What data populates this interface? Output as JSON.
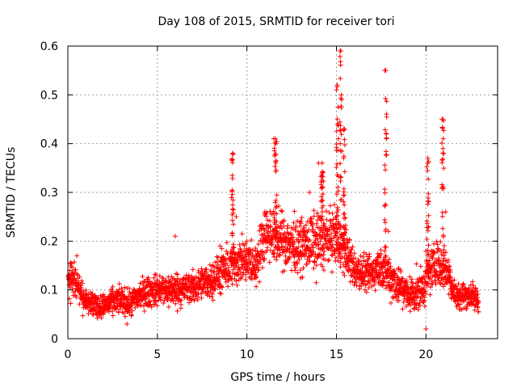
{
  "chart_data": {
    "type": "scatter",
    "title": "Day 108 of 2015, SRMTID for receiver tori",
    "xlabel": "GPS time / hours",
    "ylabel": "SRMTID / TECUs",
    "xlim": [
      0,
      24
    ],
    "ylim": [
      0,
      0.6
    ],
    "x_ticks": [
      0,
      5,
      10,
      15,
      20
    ],
    "x_tick_labels": [
      "0",
      "5",
      "10",
      "15",
      "20"
    ],
    "y_ticks": [
      0,
      0.1,
      0.2,
      0.3,
      0.4,
      0.5,
      0.6
    ],
    "y_tick_labels": [
      "0",
      "0.1",
      "0.2",
      "0.3",
      "0.4",
      "0.5",
      "0.6"
    ],
    "grid": true,
    "marker": "+",
    "color": "#ff0000",
    "sample_series": [
      {
        "x": 0.1,
        "y": 0.14
      },
      {
        "x": 0.3,
        "y": 0.12
      },
      {
        "x": 0.5,
        "y": 0.17
      },
      {
        "x": 0.7,
        "y": 0.09
      },
      {
        "x": 1.0,
        "y": 0.08
      },
      {
        "x": 1.3,
        "y": 0.07
      },
      {
        "x": 1.6,
        "y": 0.05
      },
      {
        "x": 2.0,
        "y": 0.06
      },
      {
        "x": 2.5,
        "y": 0.08
      },
      {
        "x": 3.0,
        "y": 0.07
      },
      {
        "x": 3.3,
        "y": 0.03
      },
      {
        "x": 4.0,
        "y": 0.09
      },
      {
        "x": 4.5,
        "y": 0.11
      },
      {
        "x": 5.0,
        "y": 0.12
      },
      {
        "x": 5.6,
        "y": 0.09
      },
      {
        "x": 6.0,
        "y": 0.21
      },
      {
        "x": 6.5,
        "y": 0.11
      },
      {
        "x": 7.0,
        "y": 0.12
      },
      {
        "x": 7.5,
        "y": 0.1
      },
      {
        "x": 8.0,
        "y": 0.13
      },
      {
        "x": 8.5,
        "y": 0.19
      },
      {
        "x": 9.2,
        "y": 0.38
      },
      {
        "x": 9.4,
        "y": 0.25
      },
      {
        "x": 10.0,
        "y": 0.2
      },
      {
        "x": 10.5,
        "y": 0.13
      },
      {
        "x": 11.0,
        "y": 0.26
      },
      {
        "x": 11.5,
        "y": 0.41
      },
      {
        "x": 12.0,
        "y": 0.2
      },
      {
        "x": 12.5,
        "y": 0.14
      },
      {
        "x": 13.0,
        "y": 0.22
      },
      {
        "x": 13.5,
        "y": 0.3
      },
      {
        "x": 14.0,
        "y": 0.36
      },
      {
        "x": 14.5,
        "y": 0.22
      },
      {
        "x": 15.0,
        "y": 0.51
      },
      {
        "x": 15.2,
        "y": 0.59
      },
      {
        "x": 15.4,
        "y": 0.43
      },
      {
        "x": 15.8,
        "y": 0.16
      },
      {
        "x": 16.5,
        "y": 0.12
      },
      {
        "x": 17.0,
        "y": 0.14
      },
      {
        "x": 17.7,
        "y": 0.55
      },
      {
        "x": 17.9,
        "y": 0.22
      },
      {
        "x": 18.5,
        "y": 0.12
      },
      {
        "x": 19.0,
        "y": 0.07
      },
      {
        "x": 19.5,
        "y": 0.09
      },
      {
        "x": 20.0,
        "y": 0.02
      },
      {
        "x": 20.1,
        "y": 0.36
      },
      {
        "x": 20.5,
        "y": 0.13
      },
      {
        "x": 20.9,
        "y": 0.45
      },
      {
        "x": 21.1,
        "y": 0.26
      },
      {
        "x": 21.5,
        "y": 0.09
      },
      {
        "x": 22.0,
        "y": 0.06
      },
      {
        "x": 22.5,
        "y": 0.11
      },
      {
        "x": 22.8,
        "y": 0.08
      }
    ],
    "envelope": [
      {
        "x": 0.0,
        "center": 0.12,
        "spread": 0.04
      },
      {
        "x": 0.5,
        "center": 0.11,
        "spread": 0.05
      },
      {
        "x": 1.0,
        "center": 0.08,
        "spread": 0.03
      },
      {
        "x": 1.8,
        "center": 0.065,
        "spread": 0.025
      },
      {
        "x": 2.5,
        "center": 0.075,
        "spread": 0.03
      },
      {
        "x": 3.0,
        "center": 0.08,
        "spread": 0.03
      },
      {
        "x": 3.5,
        "center": 0.07,
        "spread": 0.03
      },
      {
        "x": 4.0,
        "center": 0.09,
        "spread": 0.035
      },
      {
        "x": 5.0,
        "center": 0.1,
        "spread": 0.035
      },
      {
        "x": 6.0,
        "center": 0.1,
        "spread": 0.04
      },
      {
        "x": 7.0,
        "center": 0.105,
        "spread": 0.035
      },
      {
        "x": 8.0,
        "center": 0.12,
        "spread": 0.04
      },
      {
        "x": 8.8,
        "center": 0.14,
        "spread": 0.05
      },
      {
        "x": 9.6,
        "center": 0.16,
        "spread": 0.05
      },
      {
        "x": 10.5,
        "center": 0.15,
        "spread": 0.05
      },
      {
        "x": 11.0,
        "center": 0.22,
        "spread": 0.06
      },
      {
        "x": 12.0,
        "center": 0.2,
        "spread": 0.06
      },
      {
        "x": 13.0,
        "center": 0.19,
        "spread": 0.06
      },
      {
        "x": 14.0,
        "center": 0.2,
        "spread": 0.07
      },
      {
        "x": 14.8,
        "center": 0.21,
        "spread": 0.06
      },
      {
        "x": 15.5,
        "center": 0.18,
        "spread": 0.06
      },
      {
        "x": 16.0,
        "center": 0.14,
        "spread": 0.04
      },
      {
        "x": 16.8,
        "center": 0.13,
        "spread": 0.04
      },
      {
        "x": 17.5,
        "center": 0.15,
        "spread": 0.05
      },
      {
        "x": 18.2,
        "center": 0.12,
        "spread": 0.05
      },
      {
        "x": 19.0,
        "center": 0.09,
        "spread": 0.04
      },
      {
        "x": 19.8,
        "center": 0.1,
        "spread": 0.05
      },
      {
        "x": 20.5,
        "center": 0.16,
        "spread": 0.05
      },
      {
        "x": 21.2,
        "center": 0.14,
        "spread": 0.05
      },
      {
        "x": 21.6,
        "center": 0.09,
        "spread": 0.03
      },
      {
        "x": 22.3,
        "center": 0.09,
        "spread": 0.03
      },
      {
        "x": 22.9,
        "center": 0.08,
        "spread": 0.03
      }
    ],
    "spikes": [
      {
        "x": 9.2,
        "peak": 0.38,
        "width": 0.12
      },
      {
        "x": 11.6,
        "peak": 0.41,
        "width": 0.15
      },
      {
        "x": 14.2,
        "peak": 0.36,
        "width": 0.15
      },
      {
        "x": 15.05,
        "peak": 0.52,
        "width": 0.12
      },
      {
        "x": 15.25,
        "peak": 0.59,
        "width": 0.12
      },
      {
        "x": 15.45,
        "peak": 0.43,
        "width": 0.12
      },
      {
        "x": 17.75,
        "peak": 0.55,
        "width": 0.12
      },
      {
        "x": 20.1,
        "peak": 0.37,
        "width": 0.12
      },
      {
        "x": 20.95,
        "peak": 0.45,
        "width": 0.12
      }
    ]
  }
}
